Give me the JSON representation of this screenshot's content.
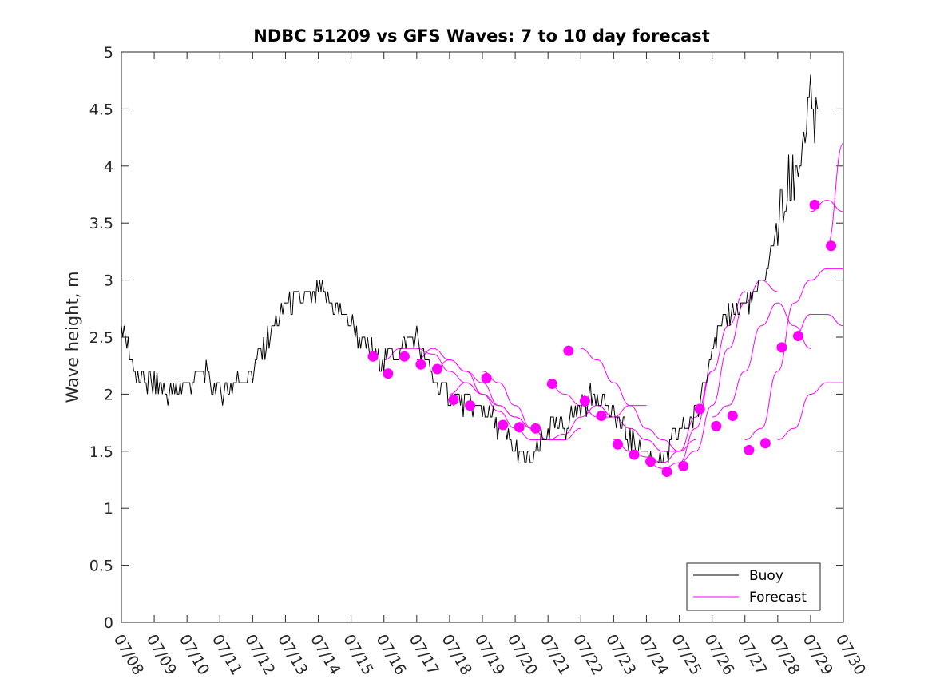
{
  "chart_data": {
    "type": "line",
    "title": "NDBC 51209 vs GFS Waves: 7 to 10 day forecast",
    "xlabel": "",
    "ylabel": "Wave height, m",
    "xlim": [
      "07/08",
      "07/30"
    ],
    "ylim": [
      0,
      5
    ],
    "x_tick_labels": [
      "07/08",
      "07/09",
      "07/10",
      "07/11",
      "07/12",
      "07/13",
      "07/14",
      "07/15",
      "07/16",
      "07/17",
      "07/18",
      "07/19",
      "07/20",
      "07/21",
      "07/22",
      "07/23",
      "07/24",
      "07/25",
      "07/26",
      "07/27",
      "07/28",
      "07/29",
      "07/30"
    ],
    "y_ticks": [
      0,
      0.5,
      1,
      1.5,
      2,
      2.5,
      3,
      3.5,
      4,
      4.5,
      5
    ],
    "y_tick_labels": [
      "0",
      "0.5",
      "1",
      "1.5",
      "2",
      "2.5",
      "3",
      "3.5",
      "4",
      "4.5",
      "5"
    ],
    "grid": false,
    "legend": {
      "position": "bottom-right",
      "entries": [
        "Buoy",
        "Forecast"
      ]
    },
    "colors": {
      "buoy": "#000000",
      "forecast": "#ff00ff"
    },
    "series": [
      {
        "name": "Buoy",
        "x": [
          "07/08",
          "07/08 12h",
          "07/09",
          "07/09 12h",
          "07/10",
          "07/10 12h",
          "07/11",
          "07/11 12h",
          "07/12",
          "07/12 12h",
          "07/13",
          "07/13 12h",
          "07/14",
          "07/14 12h",
          "07/15",
          "07/15 12h",
          "07/16",
          "07/16 12h",
          "07/17",
          "07/17 12h",
          "07/18",
          "07/18 12h",
          "07/19",
          "07/19 12h",
          "07/20",
          "07/20 12h",
          "07/21",
          "07/21 12h",
          "07/22",
          "07/22 12h",
          "07/23",
          "07/23 12h",
          "07/24",
          "07/24 12h",
          "07/25",
          "07/25 12h",
          "07/26",
          "07/26 12h",
          "07/27",
          "07/27 12h",
          "07/28",
          "07/28 12h",
          "07/29",
          "07/29 06h"
        ],
        "values": [
          2.6,
          2.1,
          2.1,
          2.0,
          2.1,
          2.2,
          2.0,
          2.1,
          2.2,
          2.5,
          2.8,
          2.8,
          2.9,
          2.8,
          2.6,
          2.4,
          2.3,
          2.4,
          2.5,
          2.1,
          2.0,
          1.9,
          1.9,
          1.7,
          1.5,
          1.4,
          1.7,
          1.7,
          1.9,
          2.0,
          1.8,
          1.6,
          1.5,
          1.4,
          1.7,
          1.8,
          2.4,
          2.7,
          2.8,
          2.9,
          3.5,
          3.9,
          4.5,
          4.3
        ]
      }
    ],
    "forecast_series": [
      {
        "x": [
          "07/16",
          "07/16 12h",
          "07/17",
          "07/17 12h",
          "07/18",
          "07/18 12h",
          "07/19"
        ],
        "values": [
          2.3,
          2.4,
          2.4,
          2.35,
          2.2,
          2.1,
          2.0
        ]
      },
      {
        "x": [
          "07/17",
          "07/17 12h",
          "07/18",
          "07/18 12h",
          "07/19",
          "07/19 12h",
          "07/20"
        ],
        "values": [
          2.3,
          2.4,
          2.3,
          2.2,
          2.0,
          1.9,
          1.8
        ]
      },
      {
        "x": [
          "07/17 12h",
          "07/18",
          "07/18 12h",
          "07/19",
          "07/19 12h",
          "07/20",
          "07/20 12h"
        ],
        "values": [
          2.2,
          2.3,
          2.2,
          2.1,
          1.9,
          1.8,
          1.7
        ]
      },
      {
        "x": [
          "07/18",
          "07/18 12h",
          "07/19",
          "07/19 12h",
          "07/20",
          "07/20 12h",
          "07/21"
        ],
        "values": [
          2.0,
          2.1,
          2.0,
          1.85,
          1.7,
          1.6,
          1.6
        ]
      },
      {
        "x": [
          "07/19",
          "07/19 12h",
          "07/20",
          "07/20 12h",
          "07/21",
          "07/21 12h",
          "07/22"
        ],
        "values": [
          2.2,
          2.1,
          1.9,
          1.7,
          1.6,
          1.6,
          1.7
        ]
      },
      {
        "x": [
          "07/20",
          "07/20 12h",
          "07/21",
          "07/21 12h",
          "07/22",
          "07/22 12h",
          "07/23"
        ],
        "values": [
          1.8,
          1.7,
          1.6,
          1.65,
          1.8,
          1.9,
          1.8
        ]
      },
      {
        "x": [
          "07/21",
          "07/21 12h",
          "07/22",
          "07/22 12h",
          "07/23",
          "07/23 12h",
          "07/24"
        ],
        "values": [
          2.1,
          2.0,
          1.9,
          1.8,
          1.8,
          1.9,
          1.9
        ]
      },
      {
        "x": [
          "07/22",
          "07/22 12h",
          "07/23",
          "07/23 12h",
          "07/24",
          "07/24 12h",
          "07/25"
        ],
        "values": [
          2.4,
          2.3,
          2.1,
          1.9,
          1.7,
          1.6,
          1.5
        ]
      },
      {
        "x": [
          "07/22 12h",
          "07/23",
          "07/23 12h",
          "07/24",
          "07/24 12h",
          "07/25",
          "07/25 12h"
        ],
        "values": [
          1.9,
          1.8,
          1.7,
          1.6,
          1.5,
          1.5,
          1.6
        ]
      },
      {
        "x": [
          "07/23",
          "07/23 12h",
          "07/24",
          "07/24 12h",
          "07/25",
          "07/25 12h",
          "07/26"
        ],
        "values": [
          1.6,
          1.5,
          1.45,
          1.4,
          1.5,
          1.8,
          2.2
        ]
      },
      {
        "x": [
          "07/24",
          "07/24 12h",
          "07/25",
          "07/25 12h",
          "07/26",
          "07/26 12h",
          "07/27"
        ],
        "values": [
          1.4,
          1.35,
          1.4,
          1.7,
          2.2,
          2.6,
          2.9
        ]
      },
      {
        "x": [
          "07/25",
          "07/25 12h",
          "07/26",
          "07/26 12h",
          "07/27",
          "07/27 12h",
          "07/28"
        ],
        "values": [
          1.4,
          1.5,
          1.9,
          2.4,
          2.8,
          3.0,
          2.9
        ]
      },
      {
        "x": [
          "07/26",
          "07/26 12h",
          "07/27",
          "07/27 12h",
          "07/28",
          "07/28 12h",
          "07/29"
        ],
        "values": [
          1.8,
          1.9,
          2.2,
          2.6,
          2.8,
          2.6,
          2.4
        ]
      },
      {
        "x": [
          "07/27",
          "07/27 12h",
          "07/28",
          "07/28 12h",
          "07/29",
          "07/29 12h",
          "07/30"
        ],
        "values": [
          1.6,
          1.7,
          2.2,
          2.8,
          3.0,
          3.1,
          3.1
        ]
      },
      {
        "x": [
          "07/28",
          "07/28 12h",
          "07/29",
          "07/29 12h",
          "07/30"
        ],
        "values": [
          1.6,
          1.7,
          2.0,
          2.1,
          2.1
        ]
      },
      {
        "x": [
          "07/28 12h",
          "07/29",
          "07/29 12h",
          "07/30"
        ],
        "values": [
          2.5,
          2.7,
          2.7,
          2.6
        ]
      },
      {
        "x": [
          "07/29",
          "07/29 12h",
          "07/30"
        ],
        "values": [
          3.6,
          3.7,
          3.6
        ]
      },
      {
        "x": [
          "07/29 12h",
          "07/30"
        ],
        "values": [
          3.3,
          4.2
        ]
      }
    ],
    "forecast_markers": {
      "x": [
        "07/15 16h",
        "07/16 03h",
        "07/16 15h",
        "07/17 03h",
        "07/17 15h",
        "07/18 03h",
        "07/18 15h",
        "07/19 03h",
        "07/19 15h",
        "07/20 03h",
        "07/20 15h",
        "07/21 03h",
        "07/21 15h",
        "07/22 03h",
        "07/22 15h",
        "07/23 03h",
        "07/23 15h",
        "07/24 03h",
        "07/24 15h",
        "07/25 03h",
        "07/25 15h",
        "07/26 03h",
        "07/26 15h",
        "07/27 03h",
        "07/27 15h",
        "07/28 03h",
        "07/28 15h",
        "07/29 03h",
        "07/29 15h"
      ],
      "values": [
        2.33,
        2.18,
        2.33,
        2.26,
        2.22,
        1.95,
        1.9,
        2.14,
        1.73,
        1.71,
        1.7,
        2.09,
        2.38,
        1.94,
        1.81,
        1.56,
        1.47,
        1.41,
        1.32,
        1.37,
        1.87,
        1.72,
        1.81,
        1.51,
        1.57,
        2.41,
        2.51,
        3.66,
        3.3
      ]
    }
  }
}
